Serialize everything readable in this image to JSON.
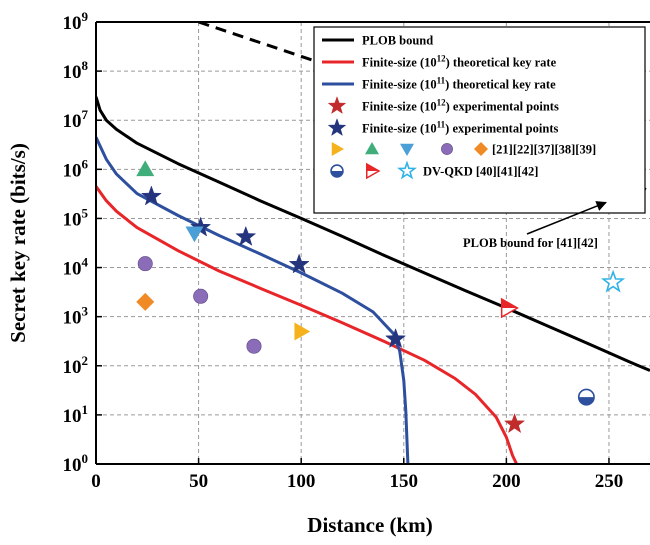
{
  "chart_data": {
    "type": "line",
    "xlabel": "Distance (km)",
    "ylabel": "Secret key rate (bits/s)",
    "xlim": [
      0,
      270
    ],
    "ylim_log10": [
      0,
      9
    ],
    "y_scale": "log",
    "grid": true,
    "legend_position": "top-right",
    "x_ticks": [
      {
        "value": 0,
        "label": "0"
      },
      {
        "value": 50,
        "label": "50"
      },
      {
        "value": 100,
        "label": "100"
      },
      {
        "value": 150,
        "label": "150"
      },
      {
        "value": 200,
        "label": "200"
      },
      {
        "value": 250,
        "label": "250"
      }
    ],
    "y_ticks": [
      {
        "exp": 0,
        "base": "10",
        "sup": "0"
      },
      {
        "exp": 1,
        "base": "10",
        "sup": "1"
      },
      {
        "exp": 2,
        "base": "10",
        "sup": "2"
      },
      {
        "exp": 3,
        "base": "10",
        "sup": "3"
      },
      {
        "exp": 4,
        "base": "10",
        "sup": "4"
      },
      {
        "exp": 5,
        "base": "10",
        "sup": "5"
      },
      {
        "exp": 6,
        "base": "10",
        "sup": "6"
      },
      {
        "exp": 7,
        "base": "10",
        "sup": "7"
      },
      {
        "exp": 8,
        "base": "10",
        "sup": "8"
      },
      {
        "exp": 9,
        "base": "10",
        "sup": "9"
      }
    ],
    "lines": [
      {
        "id": "plob",
        "color": "#000000",
        "dash": false,
        "points": [
          [
            0,
            30000000.0
          ],
          [
            2,
            16000000.0
          ],
          [
            5,
            10000000.0
          ],
          [
            10,
            6500000.0
          ],
          [
            20,
            3400000.0
          ],
          [
            40,
            1300000.0
          ],
          [
            60,
            550000.0
          ],
          [
            80,
            230000.0
          ],
          [
            100,
            100000.0
          ],
          [
            120,
            43000.0
          ],
          [
            140,
            18000.0
          ],
          [
            160,
            7800.0
          ],
          [
            180,
            3400.0
          ],
          [
            200,
            1500.0
          ],
          [
            220,
            650.0
          ],
          [
            240,
            280.0
          ],
          [
            260,
            120.0
          ],
          [
            270,
            80.0
          ]
        ]
      },
      {
        "id": "plob-41-42",
        "color": "#000000",
        "dash": true,
        "points": [
          [
            50,
            1000000000.0
          ],
          [
            150,
            40000000.0
          ],
          [
            200,
            10000000.0
          ],
          [
            270,
            350000.0
          ]
        ]
      },
      {
        "id": "finite-1e12",
        "color": "#e8262a",
        "dash": false,
        "points": [
          [
            0,
            450000.0
          ],
          [
            5,
            230000.0
          ],
          [
            10,
            140000.0
          ],
          [
            20,
            65000.0
          ],
          [
            40,
            22000.0
          ],
          [
            60,
            8500.0
          ],
          [
            80,
            3800.0
          ],
          [
            100,
            1700.0
          ],
          [
            120,
            750.0
          ],
          [
            140,
            320.0
          ],
          [
            160,
            130.0
          ],
          [
            175,
            55.0
          ],
          [
            185,
            26.0
          ],
          [
            195,
            9.0
          ],
          [
            200,
            3.5
          ],
          [
            203,
            1.5
          ],
          [
            205,
            1.0
          ]
        ]
      },
      {
        "id": "finite-1e11",
        "color": "#2e4f9e",
        "dash": false,
        "points": [
          [
            0,
            4500000.0
          ],
          [
            5,
            1600000.0
          ],
          [
            10,
            800000.0
          ],
          [
            20,
            320000.0
          ],
          [
            40,
            115000.0
          ],
          [
            60,
            45000.0
          ],
          [
            80,
            19000.0
          ],
          [
            100,
            7800.0
          ],
          [
            120,
            3000.0
          ],
          [
            135,
            1250.0
          ],
          [
            145,
            450.0
          ],
          [
            148,
            200.0
          ],
          [
            150,
            50.0
          ],
          [
            151,
            12.0
          ],
          [
            152,
            1.0
          ]
        ]
      }
    ],
    "legend": [
      {
        "label_parts": [
          "PLOB bound"
        ],
        "symbol": "line",
        "color": "#000000"
      },
      {
        "label_parts": [
          "Finite-size (10",
          "12",
          ") theoretical key rate"
        ],
        "symbol": "line",
        "color": "#e8262a"
      },
      {
        "label_parts": [
          "Finite-size (10",
          "11",
          ") theoretical key rate"
        ],
        "symbol": "line",
        "color": "#2e4f9e"
      },
      {
        "label_parts": [
          "Finite-size (10",
          "12",
          ") experimental points"
        ],
        "symbol": "star",
        "color": "#c22b2b"
      },
      {
        "label_parts": [
          "Finite-size (10",
          "11",
          ") experimental points"
        ],
        "symbol": "star",
        "color": "#24357d"
      },
      {
        "label_parts": [
          "[21][22][37][38][39]"
        ],
        "symbol": "markers-a"
      },
      {
        "label_parts": [
          "DV-QKD [40][41][42]"
        ],
        "symbol": "markers-b"
      }
    ],
    "points": [
      {
        "marker": "star",
        "color": "#24357d",
        "x": 27,
        "y": 280000.0
      },
      {
        "marker": "star",
        "color": "#24357d",
        "x": 51,
        "y": 65000.0
      },
      {
        "marker": "star",
        "color": "#24357d",
        "x": 73,
        "y": 42000.0
      },
      {
        "marker": "star",
        "color": "#24357d",
        "x": 99,
        "y": 11500.0
      },
      {
        "marker": "star",
        "color": "#24357d",
        "x": 146,
        "y": 350.0
      },
      {
        "marker": "star",
        "color": "#c22b2b",
        "x": 204,
        "y": 6.5
      },
      {
        "marker": "triangle-up",
        "color": "#3fae7a",
        "x": 24,
        "y": 1000000.0
      },
      {
        "marker": "triangle-down",
        "color": "#4aa0d6",
        "x": 48,
        "y": 50000.0
      },
      {
        "marker": "circle",
        "color": "#8b6cb8",
        "x": 24,
        "y": 12000.0
      },
      {
        "marker": "circle",
        "color": "#8b6cb8",
        "x": 51,
        "y": 2600.0
      },
      {
        "marker": "circle",
        "color": "#8b6cb8",
        "x": 77,
        "y": 250.0
      },
      {
        "marker": "diamond",
        "color": "#f08a24",
        "x": 24,
        "y": 2000.0
      },
      {
        "marker": "triangle-right",
        "color": "#f5b21c",
        "x": 100,
        "y": 500.0
      },
      {
        "marker": "triangle-right-half",
        "color": "#e8262a",
        "x": 201,
        "y": 1500.0
      },
      {
        "marker": "circle-half",
        "color": "#2e4f9e",
        "x": 239,
        "y": 23.0
      },
      {
        "marker": "star-open",
        "color": "#2fb3e6",
        "x": 252,
        "y": 5000.0
      }
    ],
    "annotations": [
      {
        "text": "PLOB bound for [41][42]",
        "x": 235,
        "y": 10000.0,
        "arrow_to": [
          250,
          280000.0
        ]
      }
    ]
  }
}
